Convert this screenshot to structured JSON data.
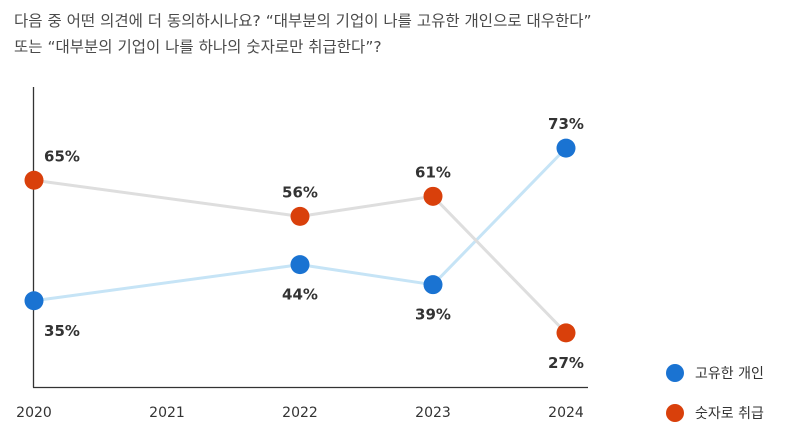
{
  "title": {
    "line1": "다음 중 어떤 의견에 더 동의하시나요? “대부분의 기업이 나를 고유한 개인으로 대우한다”",
    "line2": "또는 “대부분의 기업이 나를 하나의 숫자로만 취급한다”?"
  },
  "colors": {
    "series_unique": "#1a73d2",
    "series_number": "#d9400b",
    "line_unique": "#c6e4f6",
    "line_number": "#dedede",
    "axis": "#333333"
  },
  "chart_data": {
    "type": "line",
    "title": "다음 중 어떤 의견에 더 동의하시나요? “대부분의 기업이 나를 고유한 개인으로 대우한다” 또는 “대부분의 기업이 나를 하나의 숫자로만 취급한다”?",
    "x_ticks": [
      "2020",
      "2021",
      "2022",
      "2023",
      "2024"
    ],
    "x": [
      2020,
      2022,
      2023,
      2024
    ],
    "xlim": [
      2020,
      2024
    ],
    "ylim": [
      20,
      80
    ],
    "xlabel": "",
    "ylabel": "",
    "grid": false,
    "legend_position": "bottom-right",
    "series": [
      {
        "name": "고유한 개인",
        "values": [
          35,
          44,
          39,
          73
        ],
        "labels": [
          "35%",
          "44%",
          "39%",
          "73%"
        ],
        "label_side": [
          "below",
          "below",
          "below",
          "above"
        ]
      },
      {
        "name": "숫자로 취급",
        "values": [
          65,
          56,
          61,
          27
        ],
        "labels": [
          "65%",
          "56%",
          "61%",
          "27%"
        ],
        "label_side": [
          "above",
          "above",
          "above",
          "below"
        ]
      }
    ]
  }
}
